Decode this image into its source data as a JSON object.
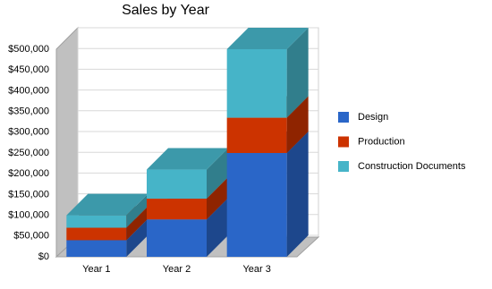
{
  "chart_data": {
    "type": "bar3d-stacked",
    "title": "Sales by Year",
    "categories": [
      "Year 1",
      "Year 2",
      "Year 3"
    ],
    "series": [
      {
        "name": "Design",
        "color": "#2a66c8",
        "values": [
          40000,
          90000,
          250000
        ]
      },
      {
        "name": "Production",
        "color": "#cc3300",
        "values": [
          30000,
          50000,
          85000
        ]
      },
      {
        "name": "Construction Documents",
        "color": "#46b4c8",
        "values": [
          30000,
          70000,
          165000
        ]
      }
    ],
    "ylim": [
      0,
      500000
    ],
    "yticks": [
      {
        "value": 0,
        "label": "$0"
      },
      {
        "value": 50000,
        "label": "$50,000"
      },
      {
        "value": 100000,
        "label": "$100,000"
      },
      {
        "value": 150000,
        "label": "$150,000"
      },
      {
        "value": 200000,
        "label": "$200,000"
      },
      {
        "value": 250000,
        "label": "$250,000"
      },
      {
        "value": 300000,
        "label": "$300,000"
      },
      {
        "value": 350000,
        "label": "$350,000"
      },
      {
        "value": 400000,
        "label": "$400,000"
      },
      {
        "value": 450000,
        "label": "$450,000"
      },
      {
        "value": 500000,
        "label": "$500,000"
      }
    ],
    "grid": true,
    "legend": "right"
  }
}
